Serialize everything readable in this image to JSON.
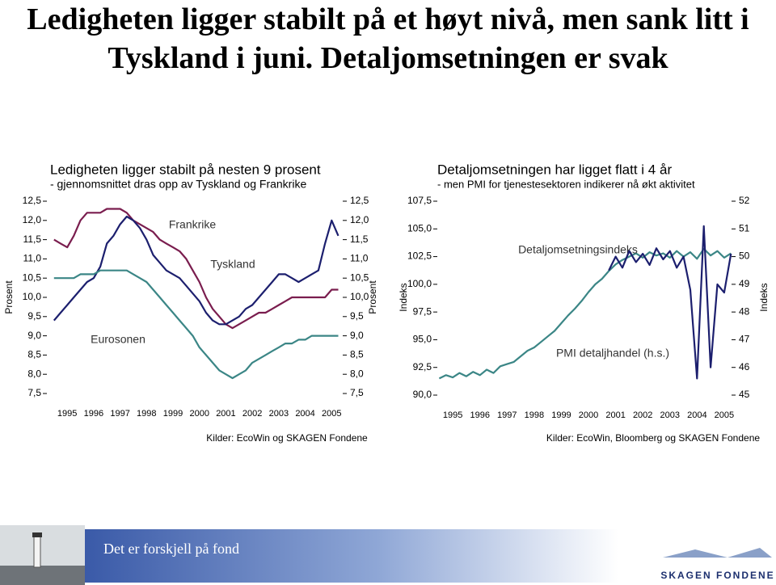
{
  "title": "Ledigheten ligger stabilt på et høyt nivå, men sank litt i Tyskland i juni. Detaljomsetningen er svak",
  "chart_data": [
    {
      "type": "line",
      "title": "Ledigheten ligger stabilt på nesten 9 prosent",
      "subtitle": "- gjennomsnittet dras opp av Tyskland og Frankrike",
      "y_label": "Prosent",
      "y2_label": "Prosent",
      "source": "Kilder: EcoWin og SKAGEN Fondene",
      "xlim": [
        1994.2,
        2005.45
      ],
      "xticks": [
        1995,
        1996,
        1997,
        1998,
        1999,
        2000,
        2001,
        2002,
        2003,
        2004,
        2005
      ],
      "ylim": [
        7.5,
        12.5
      ],
      "yticks": [
        {
          "value": 7.5,
          "label": "7,5"
        },
        {
          "value": 8,
          "label": "8,0"
        },
        {
          "value": 8.5,
          "label": "8,5"
        },
        {
          "value": 9,
          "label": "9,0"
        },
        {
          "value": 9.5,
          "label": "9,5"
        },
        {
          "value": 10,
          "label": "10,0"
        },
        {
          "value": 10.5,
          "label": "10,5"
        },
        {
          "value": 11,
          "label": "11,0"
        },
        {
          "value": 11.5,
          "label": "11,5"
        },
        {
          "value": 12,
          "label": "12,0"
        },
        {
          "value": 12.5,
          "label": "12,5"
        }
      ],
      "y2lim": [
        7.5,
        12.5
      ],
      "y2ticks": [
        {
          "value": 7.5,
          "label": "7,5"
        },
        {
          "value": 8,
          "label": "8,0"
        },
        {
          "value": 8.5,
          "label": "8,5"
        },
        {
          "value": 9,
          "label": "9,0"
        },
        {
          "value": 9.5,
          "label": "9,5"
        },
        {
          "value": 10,
          "label": "10,0"
        },
        {
          "value": 10.5,
          "label": "10,5"
        },
        {
          "value": 11,
          "label": "11,0"
        },
        {
          "value": 11.5,
          "label": "11,5"
        },
        {
          "value": 12,
          "label": "12,0"
        },
        {
          "value": 12.5,
          "label": "12,5"
        }
      ],
      "x": [
        1994.5,
        1994.75,
        1995,
        1995.25,
        1995.5,
        1995.75,
        1996,
        1996.25,
        1996.5,
        1996.75,
        1997,
        1997.25,
        1997.5,
        1997.75,
        1998,
        1998.25,
        1998.5,
        1998.75,
        1999,
        1999.25,
        1999.5,
        1999.75,
        2000,
        2000.25,
        2000.5,
        2000.75,
        2001,
        2001.25,
        2001.5,
        2001.75,
        2002,
        2002.25,
        2002.5,
        2002.75,
        2003,
        2003.25,
        2003.5,
        2003.75,
        2004,
        2004.25,
        2004.5,
        2004.75,
        2005,
        2005.25
      ],
      "series": [
        {
          "name": "Frankrike",
          "color": "#7a1d4e",
          "values": [
            11.5,
            11.4,
            11.3,
            11.6,
            12.0,
            12.2,
            12.2,
            12.2,
            12.3,
            12.3,
            12.3,
            12.2,
            12.0,
            11.9,
            11.8,
            11.7,
            11.5,
            11.4,
            11.3,
            11.2,
            11.0,
            10.7,
            10.4,
            10.0,
            9.7,
            9.5,
            9.3,
            9.2,
            9.3,
            9.4,
            9.5,
            9.6,
            9.6,
            9.7,
            9.8,
            9.9,
            10.0,
            10.0,
            10.0,
            10.0,
            10.0,
            10.0,
            10.2,
            10.2
          ]
        },
        {
          "name": "Tyskland",
          "color": "#1c1f6e",
          "values": [
            9.4,
            9.6,
            9.8,
            10.0,
            10.2,
            10.4,
            10.5,
            10.8,
            11.4,
            11.6,
            11.9,
            12.1,
            12.0,
            11.8,
            11.5,
            11.1,
            10.9,
            10.7,
            10.6,
            10.5,
            10.3,
            10.1,
            9.9,
            9.6,
            9.4,
            9.3,
            9.3,
            9.4,
            9.5,
            9.7,
            9.8,
            10.0,
            10.2,
            10.4,
            10.6,
            10.6,
            10.5,
            10.4,
            10.5,
            10.6,
            10.7,
            11.4,
            12.0,
            11.6
          ]
        },
        {
          "name": "Eurosonen",
          "color": "#3b8686",
          "values": [
            10.5,
            10.5,
            10.5,
            10.5,
            10.6,
            10.6,
            10.6,
            10.7,
            10.7,
            10.7,
            10.7,
            10.7,
            10.6,
            10.5,
            10.4,
            10.2,
            10.0,
            9.8,
            9.6,
            9.4,
            9.2,
            9.0,
            8.7,
            8.5,
            8.3,
            8.1,
            8.0,
            7.9,
            8.0,
            8.1,
            8.3,
            8.4,
            8.5,
            8.6,
            8.7,
            8.8,
            8.8,
            8.9,
            8.9,
            9.0,
            9.0,
            9.0,
            9.0,
            9.0
          ]
        }
      ]
    },
    {
      "type": "line",
      "title": "Detaljomsetningen har ligget flatt i 4 år",
      "subtitle": "- men PMI for tjenestesektoren indikerer nå økt aktivitet",
      "y_label": "Indeks",
      "y2_label": "Indeks",
      "source": "Kilder: EcoWin, Bloomberg og SKAGEN Fondene",
      "xlim": [
        1994.4,
        2005.3
      ],
      "xticks": [
        1995,
        1996,
        1997,
        1998,
        1999,
        2000,
        2001,
        2002,
        2003,
        2004,
        2005
      ],
      "ylim": [
        90,
        107.5
      ],
      "yticks": [
        {
          "value": 90,
          "label": "90,0"
        },
        {
          "value": 92.5,
          "label": "92,5"
        },
        {
          "value": 95,
          "label": "95,0"
        },
        {
          "value": 97.5,
          "label": "97,5"
        },
        {
          "value": 100,
          "label": "100,0"
        },
        {
          "value": 102.5,
          "label": "102,5"
        },
        {
          "value": 105,
          "label": "105,0"
        },
        {
          "value": 107.5,
          "label": "107,5"
        }
      ],
      "y2lim": [
        45,
        52
      ],
      "y2ticks": [
        45,
        46,
        47,
        48,
        49,
        50,
        51,
        52
      ],
      "x": [
        1994.5,
        1994.75,
        1995,
        1995.25,
        1995.5,
        1995.75,
        1996,
        1996.25,
        1996.5,
        1996.75,
        1997,
        1997.25,
        1997.5,
        1997.75,
        1998,
        1998.25,
        1998.5,
        1998.75,
        1999,
        1999.25,
        1999.5,
        1999.75,
        2000,
        2000.25,
        2000.5,
        2000.75,
        2001,
        2001.25,
        2001.5,
        2001.75,
        2002,
        2002.25,
        2002.5,
        2002.75,
        2003,
        2003.25,
        2003.5,
        2003.75,
        2004,
        2004.25,
        2004.5,
        2004.75,
        2005,
        2005.25
      ],
      "series": [
        {
          "name": "Detaljomsetningsindeks",
          "color": "#3b8686",
          "values": [
            91.5,
            91.8,
            91.6,
            92.0,
            91.7,
            92.1,
            91.8,
            92.3,
            92.0,
            92.6,
            92.8,
            93.0,
            93.5,
            94.0,
            94.3,
            94.8,
            95.3,
            95.8,
            96.5,
            97.2,
            97.8,
            98.5,
            99.3,
            100.0,
            100.5,
            101.2,
            101.8,
            102.2,
            102.5,
            102.8,
            102.4,
            102.9,
            102.6,
            102.8,
            102.4,
            103.0,
            102.5,
            102.9,
            102.3,
            103.2,
            102.6,
            103.0,
            102.4,
            102.8
          ]
        },
        {
          "name": "PMI detaljhandel (h.s.)",
          "color": "#1c1f6e",
          "axis": "y2",
          "values": [
            null,
            null,
            null,
            null,
            null,
            null,
            null,
            null,
            null,
            null,
            null,
            null,
            null,
            null,
            null,
            null,
            null,
            null,
            null,
            null,
            null,
            null,
            null,
            null,
            null,
            49.5,
            50.0,
            49.6,
            50.2,
            49.8,
            50.1,
            49.7,
            50.3,
            49.9,
            50.2,
            49.6,
            50.0,
            48.8,
            45.6,
            51.1,
            46.0,
            49.0,
            48.7,
            50.1
          ]
        }
      ]
    }
  ],
  "footer": {
    "tagline": "Det er forskjell på fond",
    "logo": "SKAGEN FONDENE"
  }
}
